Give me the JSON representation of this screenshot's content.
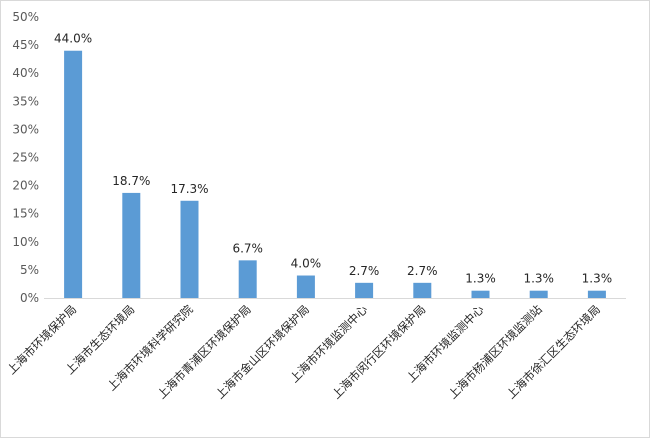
{
  "chart_data": {
    "type": "bar",
    "title": "",
    "xlabel": "",
    "ylabel": "",
    "ylim": [
      0,
      50
    ],
    "yticks": [
      "0%",
      "5%",
      "10%",
      "15%",
      "20%",
      "25%",
      "30%",
      "35%",
      "40%",
      "45%",
      "50%"
    ],
    "grid": false,
    "legend": "none",
    "bar_color": "#5b9bd5",
    "categories": [
      "上海市环境保护局",
      "上海市生态环境局",
      "上海市环境科学研究院",
      "上海市青浦区环境保护局",
      "上海市金山区环境保护局",
      "上海市环境监测中心",
      "上海市闵行区环境保护局",
      "上海市环境监测中心",
      "上海市杨浦区环境监测站",
      "上海市徐汇区生态环境局"
    ],
    "values": [
      44.0,
      18.7,
      17.3,
      6.7,
      4.0,
      2.7,
      2.7,
      1.3,
      1.3,
      1.3
    ],
    "data_labels": [
      "44.0%",
      "18.7%",
      "17.3%",
      "6.7%",
      "4.0%",
      "2.7%",
      "2.7%",
      "1.3%",
      "1.3%",
      "1.3%"
    ]
  }
}
